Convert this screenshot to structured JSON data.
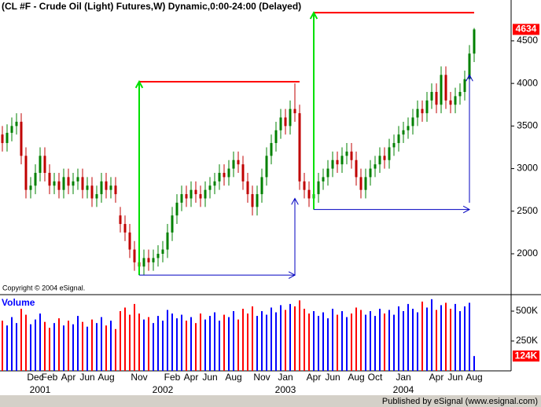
{
  "chart_data": {
    "type": "candlestick",
    "title": "(CL #F - Crude Oil (Light) Futures,W) Dynamic,0:00-24:00 (Delayed)",
    "copyright": "Copyright © 2004 eSignal.",
    "footer": "Published by eSignal (www.esignal.com)",
    "categories": [
      null,
      null,
      null,
      null,
      null,
      null,
      null,
      "Dec",
      null,
      null,
      "Feb",
      null,
      null,
      null,
      "Apr",
      null,
      null,
      null,
      "Jun",
      null,
      null,
      null,
      "Aug",
      null,
      null,
      null,
      null,
      null,
      null,
      "Nov",
      null,
      null,
      null,
      null,
      null,
      null,
      "Feb",
      null,
      null,
      null,
      "Apr",
      null,
      null,
      null,
      "Jun",
      null,
      null,
      null,
      null,
      "Aug",
      null,
      null,
      null,
      null,
      null,
      "Nov",
      null,
      null,
      null,
      null,
      "Jan",
      null,
      null,
      null,
      null,
      null,
      "Apr",
      null,
      null,
      null,
      "Jun",
      null,
      null,
      null,
      null,
      "Aug",
      null,
      null,
      null,
      "Oct",
      null,
      null,
      null,
      null,
      null,
      "Jan",
      null,
      null,
      null,
      null,
      null,
      null,
      "Apr",
      null,
      null,
      null,
      "Jun",
      null,
      null,
      null,
      "Aug"
    ],
    "years": [
      "2001",
      "2002",
      "2003",
      "2004"
    ],
    "open": [
      3400,
      3300,
      3420,
      3500,
      3550,
      3150,
      2750,
      2800,
      2950,
      3150,
      2950,
      2800,
      2850,
      2750,
      2900,
      2800,
      2850,
      2900,
      2750,
      2800,
      2650,
      2700,
      2850,
      2750,
      2800,
      2450,
      2350,
      2250,
      2050,
      1900,
      1850,
      1950,
      1900,
      1950,
      2000,
      2050,
      2250,
      2450,
      2600,
      2700,
      2650,
      2750,
      2700,
      2650,
      2750,
      2800,
      2850,
      2950,
      2900,
      3000,
      3100,
      3050,
      2850,
      2700,
      2550,
      2700,
      2900,
      3150,
      3300,
      3450,
      3600,
      3500,
      3700,
      3650,
      2850,
      2750,
      2650,
      2700,
      2850,
      2900,
      3000,
      3100,
      3050,
      3150,
      3200,
      3100,
      2900,
      2750,
      2900,
      3000,
      3050,
      3150,
      3100,
      3250,
      3300,
      3400,
      3450,
      3500,
      3600,
      3700,
      3650,
      3800,
      3900,
      3750,
      4100,
      3800,
      3750,
      3850,
      3900,
      4050,
      4350
    ],
    "high": [
      3500,
      3520,
      3600,
      3650,
      3650,
      3250,
      2900,
      3050,
      3250,
      3250,
      3050,
      2950,
      2950,
      3000,
      3000,
      2950,
      3000,
      3000,
      2900,
      2900,
      2800,
      2950,
      2950,
      2900,
      2900,
      2550,
      2450,
      2350,
      2150,
      2000,
      2050,
      2050,
      2050,
      2100,
      2150,
      2350,
      2550,
      2700,
      2800,
      2800,
      2850,
      2850,
      2800,
      2850,
      2900,
      2950,
      3050,
      3050,
      3100,
      3200,
      3200,
      3150,
      2950,
      2800,
      2800,
      3000,
      3250,
      3400,
      3550,
      3700,
      3700,
      3800,
      4000,
      3750,
      2950,
      2850,
      2800,
      2950,
      3000,
      3100,
      3200,
      3200,
      3250,
      3300,
      3300,
      3200,
      3000,
      3000,
      3100,
      3150,
      3250,
      3250,
      3350,
      3400,
      3500,
      3550,
      3600,
      3700,
      3800,
      3800,
      3900,
      4000,
      4000,
      4200,
      4200,
      3900,
      3950,
      4000,
      4150,
      4450,
      4650
    ],
    "low": [
      3200,
      3200,
      3320,
      3400,
      3050,
      2650,
      2650,
      2700,
      2850,
      2850,
      2700,
      2700,
      2650,
      2650,
      2700,
      2700,
      2750,
      2650,
      2650,
      2550,
      2550,
      2600,
      2650,
      2650,
      2600,
      2250,
      2150,
      1950,
      1800,
      1750,
      1750,
      1800,
      1800,
      1850,
      1900,
      1950,
      2150,
      2350,
      2500,
      2550,
      2550,
      2600,
      2550,
      2550,
      2650,
      2700,
      2750,
      2800,
      2800,
      2900,
      2950,
      2750,
      2600,
      2450,
      2450,
      2600,
      2800,
      3050,
      3200,
      3350,
      3400,
      3400,
      3550,
      2750,
      2650,
      2550,
      2530,
      2600,
      2750,
      2800,
      2900,
      2950,
      2950,
      3050,
      3000,
      2800,
      2650,
      2650,
      2800,
      2900,
      2950,
      3000,
      3000,
      3150,
      3200,
      3300,
      3350,
      3400,
      3500,
      3550,
      3550,
      3700,
      3650,
      3650,
      3700,
      3650,
      3650,
      3750,
      3800,
      3950,
      4250
    ],
    "close": [
      3300,
      3420,
      3500,
      3550,
      3150,
      2750,
      2800,
      2950,
      3150,
      2950,
      2800,
      2850,
      2750,
      2900,
      2800,
      2850,
      2900,
      2750,
      2800,
      2650,
      2700,
      2850,
      2750,
      2800,
      2700,
      2350,
      2250,
      2050,
      1900,
      1850,
      1950,
      1900,
      1950,
      2000,
      2050,
      2250,
      2450,
      2600,
      2700,
      2650,
      2750,
      2700,
      2650,
      2750,
      2800,
      2850,
      2950,
      2900,
      3000,
      3100,
      3050,
      2850,
      2700,
      2550,
      2700,
      2900,
      3150,
      3300,
      3450,
      3600,
      3500,
      3700,
      3650,
      2850,
      2750,
      2650,
      2700,
      2850,
      2900,
      3000,
      3100,
      3050,
      3150,
      3200,
      3100,
      2900,
      2750,
      2900,
      3000,
      3050,
      3150,
      3100,
      3250,
      3300,
      3400,
      3450,
      3500,
      3600,
      3700,
      3650,
      3800,
      3900,
      3750,
      4100,
      3800,
      3750,
      3850,
      3900,
      4050,
      4350,
      4634
    ],
    "up_color": "#008000",
    "down_color": "#c00000",
    "last_value": 4634,
    "last_color": "#ff0000",
    "ylim": [
      1548,
      4850
    ],
    "yticks": [
      2000,
      2500,
      3000,
      3500,
      4000,
      4500
    ],
    "trendlines": [
      {
        "color": "#ff0000",
        "x": [
          29,
          63
        ],
        "y": [
          4020,
          4020
        ],
        "arrow": false
      },
      {
        "color": "#00e000",
        "x": [
          29,
          29
        ],
        "y": [
          1750,
          4020
        ],
        "arrow": true
      },
      {
        "color": "#0000c0",
        "x": [
          29,
          62
        ],
        "y": [
          1750,
          1750
        ],
        "arrow": true
      },
      {
        "color": "#0000c0",
        "x": [
          62,
          62
        ],
        "y": [
          1750,
          2650
        ],
        "arrow": true
      },
      {
        "color": "#ff0000",
        "x": [
          66,
          100
        ],
        "y": [
          4830,
          4830
        ],
        "arrow": false
      },
      {
        "color": "#00e000",
        "x": [
          66,
          66
        ],
        "y": [
          2520,
          4830
        ],
        "arrow": true
      },
      {
        "color": "#0000c0",
        "x": [
          66,
          99
        ],
        "y": [
          2520,
          2520
        ],
        "arrow": true
      },
      {
        "color": "#0000c0",
        "x": [
          99,
          99
        ],
        "y": [
          2600,
          4100
        ],
        "arrow": true
      }
    ],
    "volume": {
      "title": "Volume",
      "up_color": "#0000ff",
      "down_color": "#ff0000",
      "values": [
        420000,
        380000,
        450000,
        400000,
        520000,
        470000,
        390000,
        430000,
        480000,
        410000,
        360000,
        400000,
        440000,
        380000,
        420000,
        390000,
        460000,
        410000,
        370000,
        430000,
        400000,
        450000,
        380000,
        420000,
        350000,
        500000,
        530000,
        470000,
        560000,
        480000,
        430000,
        450000,
        400000,
        460000,
        420000,
        510000,
        480000,
        440000,
        470000,
        420000,
        450000,
        400000,
        480000,
        430000,
        460000,
        490000,
        420000,
        470000,
        450000,
        500000,
        430000,
        520000,
        480000,
        540000,
        460000,
        500000,
        470000,
        530000,
        490000,
        550000,
        510000,
        560000,
        540000,
        590000,
        520000,
        480000,
        500000,
        460000,
        490000,
        440000,
        520000,
        470000,
        500000,
        450000,
        480000,
        530000,
        510000,
        470000,
        500000,
        460000,
        520000,
        480000,
        510000,
        470000,
        540000,
        500000,
        560000,
        520000,
        490000,
        580000,
        530000,
        600000,
        510000,
        550000,
        570000,
        520000,
        560000,
        500000,
        540000,
        570000,
        124000
      ],
      "last_label": "124K",
      "ylim": [
        0,
        625000
      ],
      "yticks": [
        {
          "value": 500000,
          "label": "500K"
        },
        {
          "value": 250000,
          "label": "250K"
        }
      ]
    }
  }
}
